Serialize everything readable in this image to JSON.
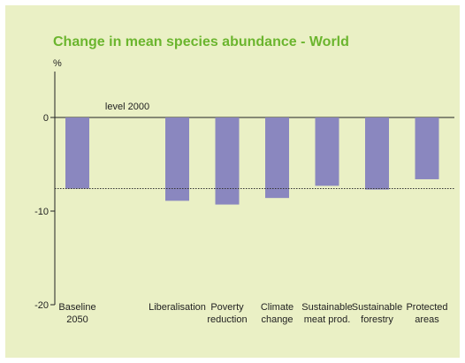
{
  "chart_data": {
    "type": "bar",
    "title": "Change in mean species abundance - World",
    "ylabel": "%",
    "ylim": [
      -20,
      5
    ],
    "yticks": [
      0,
      -10,
      -20
    ],
    "categories": [
      [
        "Baseline",
        "2050"
      ],
      [
        "level 2000"
      ],
      [
        "Liberalisation"
      ],
      [
        "Poverty",
        "reduction"
      ],
      [
        "Climate",
        "change"
      ],
      [
        "Sustainable",
        "meat prod."
      ],
      [
        "Sustainable",
        "forestry"
      ],
      [
        "Protected",
        "areas"
      ]
    ],
    "values": [
      -7.6,
      0,
      -8.9,
      -9.3,
      -8.6,
      -7.3,
      -7.7,
      -6.6
    ],
    "reference_line": -7.6,
    "grid": false,
    "colors": {
      "title": "#6bb52e",
      "bar": "#8a87bf",
      "background": "#eaf0c5"
    }
  }
}
